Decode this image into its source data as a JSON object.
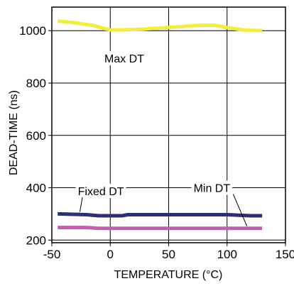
{
  "chart_data": {
    "type": "line",
    "title": "",
    "xlabel": "TEMPERATURE (°C)",
    "ylabel": "DEAD-TIME (ns)",
    "xlim": [
      -50,
      150
    ],
    "ylim": [
      190,
      1090
    ],
    "xticks": [
      -50,
      0,
      50,
      100,
      150
    ],
    "xtick_labels": [
      "-50",
      "0",
      "50",
      "100",
      "150"
    ],
    "yticks": [
      200,
      400,
      600,
      800,
      1000
    ],
    "ytick_labels": [
      "200",
      "400",
      "600",
      "800",
      "1000"
    ],
    "grid": true,
    "legend": "none",
    "series": [
      {
        "name": "Max DT",
        "color": "#f0ee44",
        "x": [
          -45,
          -30,
          -15,
          -5,
          0,
          10,
          25,
          50,
          75,
          90,
          100,
          115,
          130
        ],
        "y": [
          1037,
          1030,
          1020,
          1008,
          1003,
          1003,
          1005,
          1012,
          1020,
          1020,
          1012,
          1002,
          1000
        ]
      },
      {
        "name": "Fixed DT",
        "color": "#2e2f70",
        "x": [
          -45,
          -20,
          -10,
          10,
          15,
          80,
          100,
          120,
          130
        ],
        "y": [
          300,
          297,
          293,
          293,
          297,
          297,
          297,
          293,
          293
        ]
      },
      {
        "name": "Min DT",
        "color": "#c060b0",
        "x": [
          -45,
          -20,
          -10,
          10,
          130
        ],
        "y": [
          248,
          248,
          245,
          245,
          245
        ]
      }
    ],
    "annotations": [
      {
        "text": "Max DT",
        "x": 12,
        "y": 895
      },
      {
        "text": "Fixed DT",
        "x": -8,
        "y": 388
      },
      {
        "text": "Min DT",
        "x": 87,
        "y": 400
      }
    ]
  }
}
